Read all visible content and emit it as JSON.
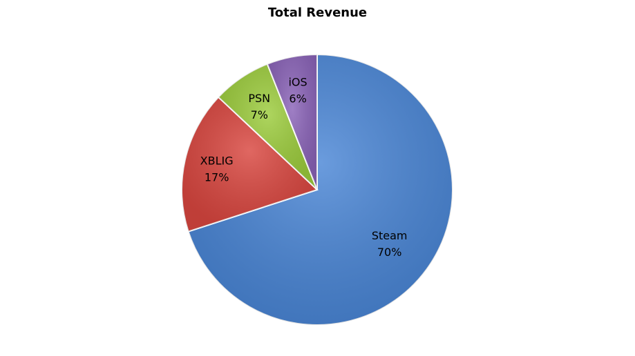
{
  "chart_data": {
    "type": "pie",
    "title": "Total Revenue",
    "legend": "none",
    "categories": [
      "Steam",
      "XBLIG",
      "PSN",
      "iOS"
    ],
    "values": [
      70,
      17,
      7,
      6
    ],
    "value_labels": [
      "70%",
      "17%",
      "7%",
      "6%"
    ],
    "start_angle_deg": 0,
    "direction": "clockwise",
    "colors": [
      "#4a86d6",
      "#d9463f",
      "#9ccc3c",
      "#8a63b8"
    ]
  }
}
